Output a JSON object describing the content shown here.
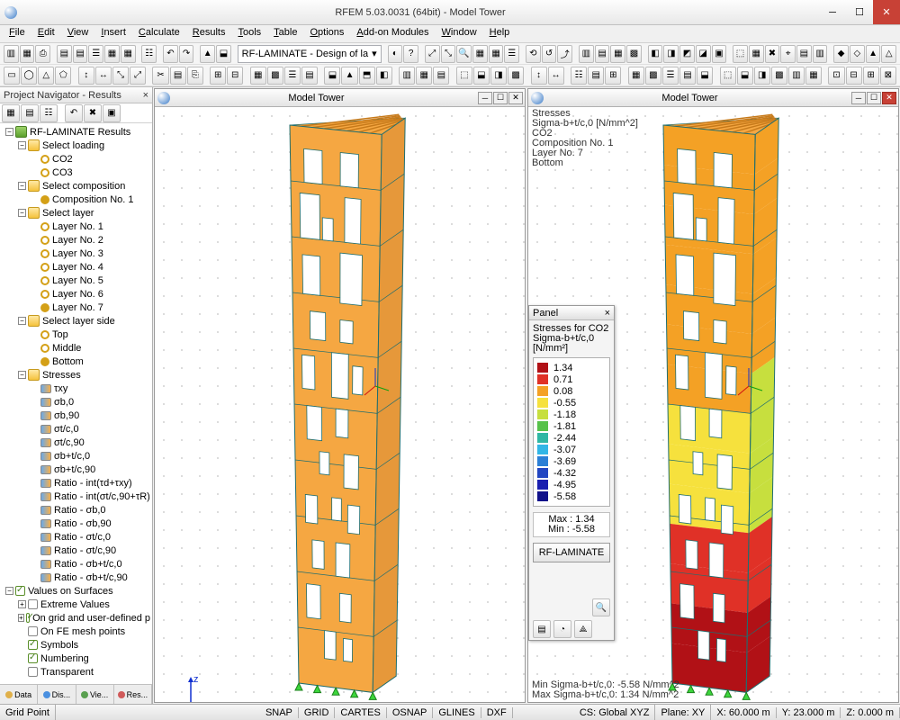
{
  "app": {
    "title": "RFEM 5.03.0031 (64bit) - Model Tower"
  },
  "menu": [
    "File",
    "Edit",
    "View",
    "Insert",
    "Calculate",
    "Results",
    "Tools",
    "Table",
    "Options",
    "Add-on Modules",
    "Window",
    "Help"
  ],
  "toolbar_combo": "RF-LAMINATE - Design of la",
  "navigator": {
    "title": "Project Navigator - Results",
    "tabs": [
      "Data",
      "Dis...",
      "Vie...",
      "Res..."
    ],
    "tree": [
      {
        "d": 0,
        "exp": "-",
        "ico": "result",
        "label": "RF-LAMINATE Results"
      },
      {
        "d": 1,
        "exp": "-",
        "ico": "folder",
        "label": "Select loading"
      },
      {
        "d": 2,
        "ico": "ring",
        "label": "CO2"
      },
      {
        "d": 2,
        "ico": "ring",
        "label": "CO3"
      },
      {
        "d": 1,
        "exp": "-",
        "ico": "folder",
        "label": "Select composition"
      },
      {
        "d": 2,
        "ico": "ring sel",
        "label": "Composition No. 1"
      },
      {
        "d": 1,
        "exp": "-",
        "ico": "folder",
        "label": "Select layer"
      },
      {
        "d": 2,
        "ico": "ring",
        "label": "Layer No. 1"
      },
      {
        "d": 2,
        "ico": "ring",
        "label": "Layer No. 2"
      },
      {
        "d": 2,
        "ico": "ring",
        "label": "Layer No. 3"
      },
      {
        "d": 2,
        "ico": "ring",
        "label": "Layer No. 4"
      },
      {
        "d": 2,
        "ico": "ring",
        "label": "Layer No. 5"
      },
      {
        "d": 2,
        "ico": "ring",
        "label": "Layer No. 6"
      },
      {
        "d": 2,
        "ico": "ring sel",
        "label": "Layer No. 7"
      },
      {
        "d": 1,
        "exp": "-",
        "ico": "folder",
        "label": "Select layer side"
      },
      {
        "d": 2,
        "ico": "ring",
        "label": "Top"
      },
      {
        "d": 2,
        "ico": "ring",
        "label": "Middle"
      },
      {
        "d": 2,
        "ico": "ring sel",
        "label": "Bottom"
      },
      {
        "d": 1,
        "exp": "-",
        "ico": "folder",
        "label": "Stresses"
      },
      {
        "d": 2,
        "ico": "flag",
        "label": "τxy"
      },
      {
        "d": 2,
        "ico": "flag",
        "label": "σb,0"
      },
      {
        "d": 2,
        "ico": "flag",
        "label": "σb,90"
      },
      {
        "d": 2,
        "ico": "flag",
        "label": "σt/c,0"
      },
      {
        "d": 2,
        "ico": "flag",
        "label": "σt/c,90"
      },
      {
        "d": 2,
        "ico": "flag",
        "label": "σb+t/c,0"
      },
      {
        "d": 2,
        "ico": "flag",
        "label": "σb+t/c,90"
      },
      {
        "d": 2,
        "ico": "flag",
        "label": "Ratio - int(τd+τxy)"
      },
      {
        "d": 2,
        "ico": "flag",
        "label": "Ratio - int(σt/c,90+τR)"
      },
      {
        "d": 2,
        "ico": "flag",
        "label": "Ratio - σb,0"
      },
      {
        "d": 2,
        "ico": "flag",
        "label": "Ratio - σb,90"
      },
      {
        "d": 2,
        "ico": "flag",
        "label": "Ratio - σt/c,0"
      },
      {
        "d": 2,
        "ico": "flag",
        "label": "Ratio - σt/c,90"
      },
      {
        "d": 2,
        "ico": "flag",
        "label": "Ratio - σb+t/c,0"
      },
      {
        "d": 2,
        "ico": "flag",
        "label": "Ratio - σb+t/c,90"
      },
      {
        "d": 0,
        "exp": "-",
        "ico": "chk on",
        "label": "Values on Surfaces"
      },
      {
        "d": 1,
        "exp": "+",
        "ico": "box",
        "label": "Extreme Values"
      },
      {
        "d": 1,
        "exp": "+",
        "ico": "chk on",
        "label": "On grid and user-defined p"
      },
      {
        "d": 1,
        "ico": "box",
        "label": "On FE mesh points"
      },
      {
        "d": 1,
        "ico": "chk on",
        "label": "Symbols"
      },
      {
        "d": 1,
        "ico": "chk on",
        "label": "Numbering"
      },
      {
        "d": 1,
        "ico": "box",
        "label": "Transparent"
      }
    ]
  },
  "viewports": {
    "left": {
      "title": "Model Tower"
    },
    "right": {
      "title": "Model Tower",
      "info": [
        "Stresses",
        "Sigma-b+t/c,0 [N/mm^2]",
        "CO2",
        "Composition No. 1",
        "Layer No. 7",
        "Bottom"
      ],
      "minmax": [
        "Min Sigma-b+t/c,0: -5.58 N/mm^2",
        "Max Sigma-b+t/c,0: 1.34 N/mm^2"
      ]
    }
  },
  "panel": {
    "title": "Panel",
    "hdr1": "Stresses for CO2",
    "hdr2": "Sigma-b+t/c,0 [N/mm²]",
    "legend": [
      {
        "v": "1.34",
        "c": "#b11116"
      },
      {
        "v": "0.71",
        "c": "#e03127"
      },
      {
        "v": "0.08",
        "c": "#f4a125"
      },
      {
        "v": "-0.55",
        "c": "#f6e13d"
      },
      {
        "v": "-1.18",
        "c": "#c7df3e"
      },
      {
        "v": "-1.81",
        "c": "#57c24a"
      },
      {
        "v": "-2.44",
        "c": "#2fb7a4"
      },
      {
        "v": "-3.07",
        "c": "#31b6e6"
      },
      {
        "v": "-3.69",
        "c": "#2b7fd6"
      },
      {
        "v": "-4.32",
        "c": "#2246c2"
      },
      {
        "v": "-4.95",
        "c": "#1a1fb0"
      },
      {
        "v": "-5.58",
        "c": "#10118a"
      }
    ],
    "max": "Max :   1.34",
    "min": "Min :  -5.58",
    "button": "RF-LAMINATE"
  },
  "statusbar": {
    "left": "Grid Point",
    "toggles": [
      "SNAP",
      "GRID",
      "CARTES",
      "OSNAP",
      "GLINES",
      "DXF"
    ],
    "cs": "CS: Global XYZ",
    "plane": "Plane: XY",
    "coords": [
      "X: 60.000 m",
      "Y: 23.000 m",
      "Z: 0.000 m"
    ]
  },
  "tower": {
    "fill_left": "#f5a742",
    "stroke": "#1f6e70",
    "openings": [
      [
        0.15,
        0.04,
        0.2,
        0.06
      ],
      [
        0.55,
        0.04,
        0.2,
        0.06
      ],
      [
        0.1,
        0.12,
        0.22,
        0.08
      ],
      [
        0.6,
        0.12,
        0.18,
        0.08
      ],
      [
        0.35,
        0.16,
        0.12,
        0.04
      ],
      [
        0.12,
        0.23,
        0.2,
        0.07
      ],
      [
        0.55,
        0.22,
        0.25,
        0.09
      ],
      [
        0.2,
        0.33,
        0.18,
        0.05
      ],
      [
        0.55,
        0.34,
        0.15,
        0.04
      ],
      [
        0.1,
        0.41,
        0.15,
        0.06
      ],
      [
        0.45,
        0.4,
        0.2,
        0.08
      ],
      [
        0.7,
        0.42,
        0.12,
        0.05
      ],
      [
        0.15,
        0.5,
        0.18,
        0.06
      ],
      [
        0.5,
        0.5,
        0.15,
        0.05
      ],
      [
        0.3,
        0.58,
        0.12,
        0.04
      ],
      [
        0.6,
        0.58,
        0.18,
        0.06
      ],
      [
        0.12,
        0.66,
        0.15,
        0.05
      ],
      [
        0.45,
        0.66,
        0.12,
        0.04
      ],
      [
        0.65,
        0.67,
        0.15,
        0.05
      ],
      [
        0.2,
        0.74,
        0.15,
        0.05
      ],
      [
        0.5,
        0.74,
        0.18,
        0.06
      ],
      [
        0.12,
        0.82,
        0.18,
        0.06
      ],
      [
        0.55,
        0.83,
        0.15,
        0.05
      ],
      [
        0.35,
        0.9,
        0.15,
        0.05
      ],
      [
        0.6,
        0.91,
        0.12,
        0.04
      ]
    ],
    "floors": 10
  }
}
